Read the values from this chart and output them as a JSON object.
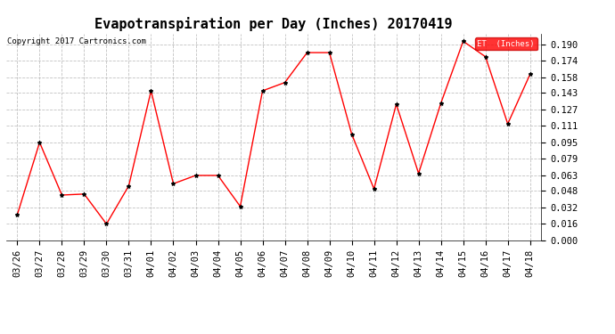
{
  "title": "Evapotranspiration per Day (Inches) 20170419",
  "copyright": "Copyright 2017 Cartronics.com",
  "legend_label": "ET  (Inches)",
  "legend_bg": "#ff0000",
  "legend_text_color": "#ffffff",
  "line_color": "#ff0000",
  "marker_color": "#000000",
  "background_color": "#ffffff",
  "grid_color": "#bbbbbb",
  "dates": [
    "03/26",
    "03/27",
    "03/28",
    "03/29",
    "03/30",
    "03/31",
    "04/01",
    "04/02",
    "04/03",
    "04/04",
    "04/05",
    "04/06",
    "04/07",
    "04/08",
    "04/09",
    "04/10",
    "04/11",
    "04/12",
    "04/13",
    "04/14",
    "04/15",
    "04/16",
    "04/17",
    "04/18"
  ],
  "values": [
    0.025,
    0.095,
    0.044,
    0.045,
    0.016,
    0.053,
    0.145,
    0.055,
    0.063,
    0.063,
    0.033,
    0.145,
    0.153,
    0.182,
    0.182,
    0.103,
    0.05,
    0.132,
    0.065,
    0.133,
    0.193,
    0.178,
    0.113,
    0.161
  ],
  "ylim": [
    0.0,
    0.2006
  ],
  "yticks": [
    0.0,
    0.016,
    0.032,
    0.048,
    0.063,
    0.079,
    0.095,
    0.111,
    0.127,
    0.143,
    0.158,
    0.174,
    0.19
  ],
  "title_fontsize": 11,
  "tick_fontsize": 7.5,
  "copyright_fontsize": 6.5
}
